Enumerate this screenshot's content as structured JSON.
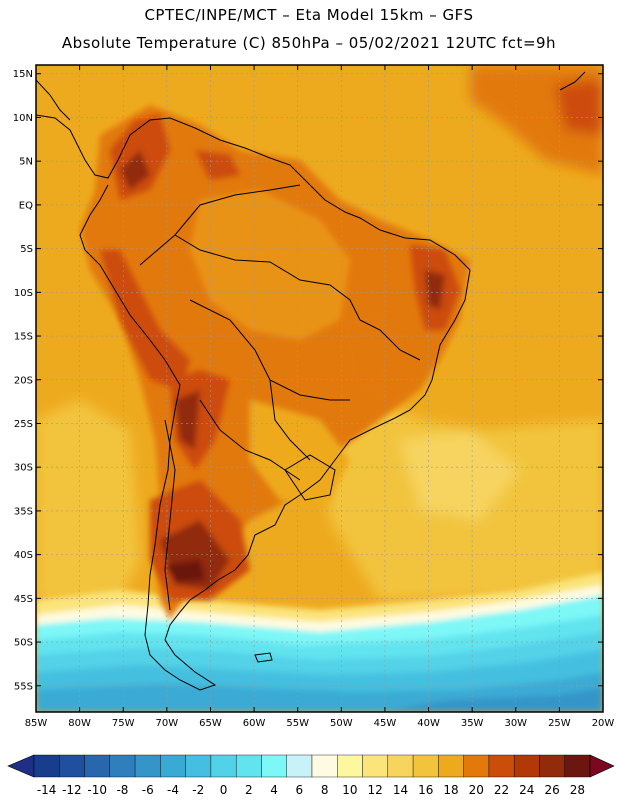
{
  "title": {
    "line1": "CPTEC/INPE/MCT –  Eta Model 15km – GFS",
    "line2": "Absolute Temperature (C) 850hPa – 05/02/2021 12UTC fct=9h"
  },
  "map": {
    "lat_labels": [
      "15N",
      "10N",
      "5N",
      "EQ",
      "5S",
      "10S",
      "15S",
      "20S",
      "25S",
      "30S",
      "35S",
      "40S",
      "45S",
      "50S",
      "55S"
    ],
    "lon_labels": [
      "85W",
      "80W",
      "75W",
      "70W",
      "65W",
      "60W",
      "55W",
      "50W",
      "45W",
      "40W",
      "35W",
      "30W",
      "25W",
      "20W"
    ],
    "lon_range_deg": [
      -85,
      -20
    ],
    "lat_range_deg": [
      -58,
      16
    ]
  },
  "colorbar": {
    "labels": [
      "-14",
      "-12",
      "-10",
      "-8",
      "-6",
      "-4",
      "-2",
      "0",
      "2",
      "4",
      "6",
      "8",
      "10",
      "12",
      "14",
      "16",
      "18",
      "20",
      "22",
      "24",
      "26",
      "28"
    ],
    "colors": [
      "#173d8c",
      "#1f4f9e",
      "#2867ae",
      "#2f7fbd",
      "#3595c8",
      "#3aaad4",
      "#44bfdf",
      "#52d2e8",
      "#62e4ef",
      "#7ef7f7",
      "#c8f2f8",
      "#fffbe2",
      "#fdf7a0",
      "#fbe47c",
      "#f6d45e",
      "#f2c43c",
      "#eeaa1f",
      "#e2790a",
      "#cc4c0a",
      "#b23808",
      "#922b09",
      "#6b1710"
    ],
    "underflow_color": "#1e2f85",
    "overflow_color": "#7a0820"
  }
}
